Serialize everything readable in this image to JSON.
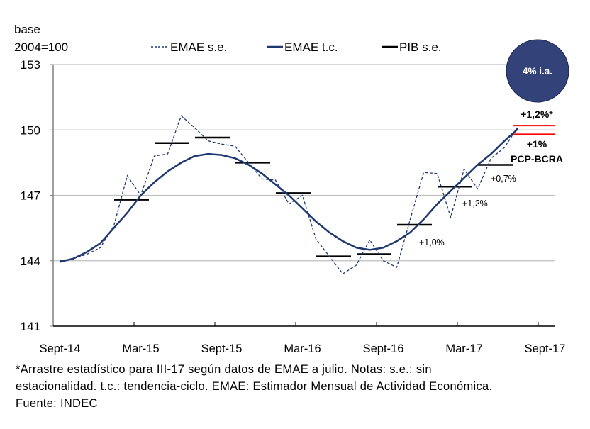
{
  "chart_data": {
    "type": "line",
    "ylabel_lines": [
      "base",
      "2004=100"
    ],
    "ylim": [
      141,
      153
    ],
    "yticks": [
      141,
      144,
      147,
      150,
      153
    ],
    "grid": true,
    "legend_placement": "top",
    "x_start": "Sept-14",
    "xtick_labels": [
      "Sept-14",
      "Mar-15",
      "Sept-15",
      "Mar-16",
      "Sept-16",
      "Mar-17",
      "Sept-17"
    ],
    "series": [
      {
        "name": "EMAE s.e.",
        "style": "dashed",
        "color": "#1F3870",
        "values": [
          144.0,
          144.1,
          144.3,
          144.6,
          145.6,
          147.9,
          147.0,
          148.8,
          148.9,
          150.65,
          150.1,
          149.5,
          149.35,
          149.25,
          148.5,
          147.75,
          147.7,
          146.6,
          147.0,
          145.0,
          144.2,
          143.4,
          143.8,
          144.95,
          144.0,
          143.7,
          145.9,
          148.05,
          148.0,
          146.0,
          148.2,
          147.3,
          148.7,
          149.2,
          150.15
        ]
      },
      {
        "name": "EMAE t.c.",
        "style": "solid",
        "color": "#1F3870",
        "values": [
          143.95,
          144.1,
          144.4,
          144.8,
          145.5,
          146.2,
          147.0,
          147.6,
          148.1,
          148.5,
          148.8,
          148.9,
          148.85,
          148.7,
          148.4,
          148.0,
          147.5,
          147.0,
          146.4,
          145.8,
          145.3,
          144.9,
          144.6,
          144.5,
          144.6,
          144.9,
          145.3,
          145.9,
          146.6,
          147.2,
          147.8,
          148.4,
          148.9,
          149.5,
          150.05
        ]
      },
      {
        "name": "PIB s.e.",
        "style": "segments",
        "color": "#000000",
        "quarters": [
          {
            "start": "Jan-15",
            "value": 146.8
          },
          {
            "start": "Apr-15",
            "value": 149.4
          },
          {
            "start": "Jul-15",
            "value": 149.65
          },
          {
            "start": "Oct-15",
            "value": 148.5
          },
          {
            "start": "Jan-16",
            "value": 147.1
          },
          {
            "start": "Apr-16",
            "value": 144.2
          },
          {
            "start": "Jul-16",
            "value": 144.3
          },
          {
            "start": "Oct-16",
            "value": 145.65
          },
          {
            "start": "Jan-17",
            "value": 147.4
          },
          {
            "start": "Apr-17",
            "value": 148.4
          }
        ]
      }
    ],
    "projections": {
      "color": "#FF0000",
      "start": "Jul-17",
      "values": [
        150.2,
        149.8
      ],
      "label_top": "+1,2%*",
      "label_bottom": "+1%",
      "label_source": "PCP-BCRA"
    },
    "annotations": [
      "+1,0%",
      "+1,2%",
      "+0,7%"
    ],
    "badge": {
      "text": "4% i.a.",
      "color": "#34427A"
    }
  },
  "footnote": {
    "lines": [
      "*Arrastre estadístico para III-17 según datos de EMAE a julio. Notas: s.e.: sin",
      "estacionalidad. t.c.: tendencia-ciclo. EMAE: Estimador Mensual de Actividad Económica.",
      "Fuente: INDEC"
    ]
  }
}
